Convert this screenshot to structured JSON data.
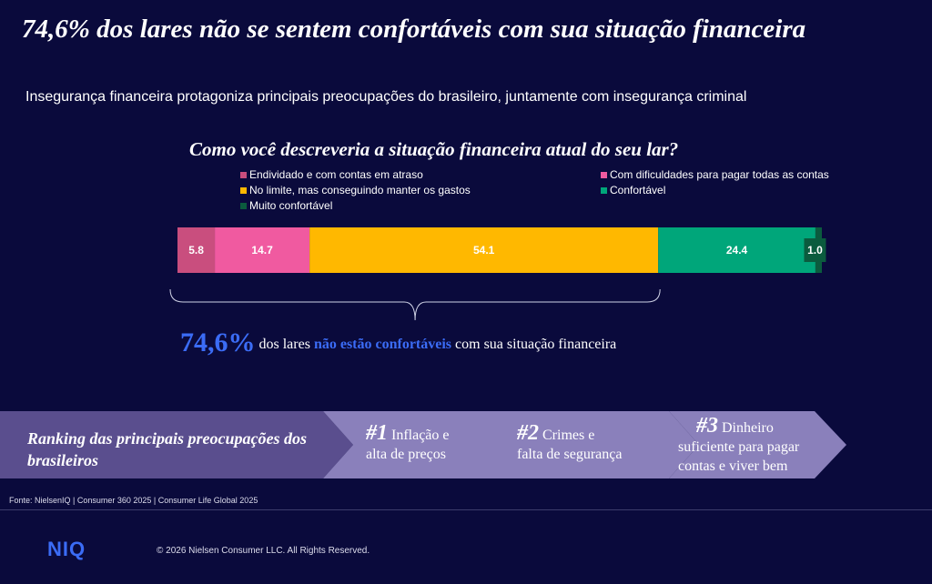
{
  "header": {
    "title": "74,6% dos lares não se sentem confortáveis com sua situação financeira",
    "subtitle": "Insegurança financeira protagoniza principais preocupações do brasileiro, juntamente com insegurança criminal"
  },
  "chart_data": {
    "type": "bar",
    "orientation": "horizontal-stacked",
    "title": "Como você descreveria a situação financeira atual do seu lar?",
    "categories": [
      ""
    ],
    "series": [
      {
        "name": "Endividado e com contas em atraso",
        "values": [
          5.8
        ],
        "color": "#c94e7e"
      },
      {
        "name": "Com dificuldades para pagar todas as contas",
        "values": [
          14.7
        ],
        "color": "#f05aa0"
      },
      {
        "name": "No limite, mas conseguindo manter os gastos",
        "values": [
          54.1
        ],
        "color": "#ffb800"
      },
      {
        "name": "Confortável",
        "values": [
          24.4
        ],
        "color": "#00a67a"
      },
      {
        "name": "Muito confortável",
        "values": [
          1.0
        ],
        "color": "#0b5b3e"
      }
    ],
    "data_labels": [
      "5.8",
      "14.7",
      "54.1",
      "24.4",
      "1.0"
    ],
    "xlim": [
      0,
      100
    ],
    "legend_position": "top"
  },
  "highlight": {
    "value": "74,6%",
    "text_before": "dos lares",
    "text_accent": "não estão confortáveis",
    "text_after": "com sua situação financeira"
  },
  "ranking": {
    "label": "Ranking das principais preocupações dos brasileiros",
    "items": [
      {
        "rank": "#1",
        "text_line1": "Inflação e",
        "text_line2": "alta de preços"
      },
      {
        "rank": "#2",
        "text_line1": "Crimes e",
        "text_line2": "falta de segurança"
      },
      {
        "rank": "#3",
        "text_line1": "Dinheiro",
        "text_line2": "suficiente para pagar",
        "text_line3": "contas e viver bem"
      }
    ]
  },
  "footer": {
    "source": "Fonte: NielsenIQ | Consumer 360 2025 | Consumer Life Global 2025",
    "logo": "NIQ",
    "copyright": "© 2026 Nielsen Consumer LLC. All Rights Reserved."
  },
  "colors": {
    "background": "#0a0a3c",
    "accent": "#3b6cf6",
    "ranking_dark": "#5a4e8e",
    "ranking_mid": "#8a80bb"
  }
}
